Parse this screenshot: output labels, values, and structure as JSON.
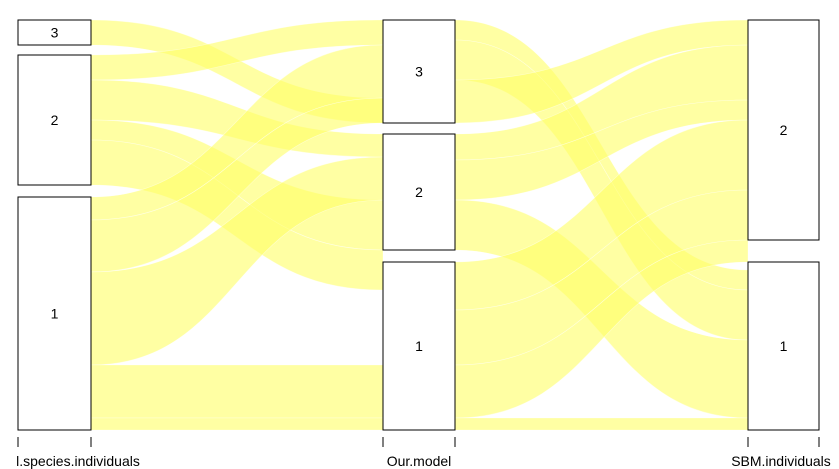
{
  "diagram": {
    "type": "alluvial",
    "flow_color": "#ffff66",
    "flow_opacity": 0.6,
    "axes": [
      {
        "label": "l.species.individuals",
        "categories": [
          "1",
          "2",
          "3"
        ]
      },
      {
        "label": "Our.model",
        "categories": [
          "1",
          "2",
          "3"
        ]
      },
      {
        "label": "SBM.individuals",
        "categories": [
          "1",
          "2"
        ]
      }
    ]
  }
}
